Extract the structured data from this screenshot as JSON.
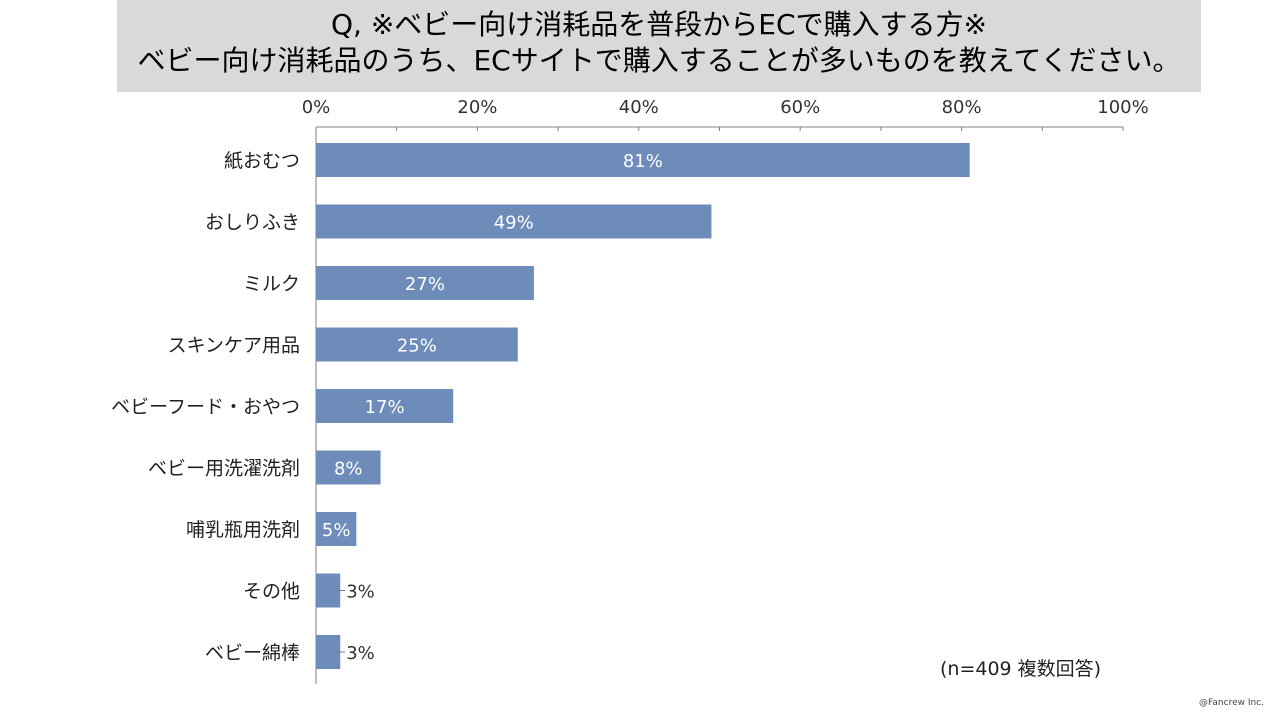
{
  "header": {
    "title_line_1": "Q, ※ベビー向け消耗品を普段からECで購入する方※",
    "title_line_2": "ベビー向け消耗品のうち、ECサイトで購入することが多いものを教えてください。"
  },
  "chart_data": {
    "type": "bar",
    "orientation": "horizontal",
    "categories": [
      "紙おむつ",
      "おしりふき",
      "ミルク",
      "スキンケア用品",
      "ベビーフード・おやつ",
      "ベビー用洗濯洗剤",
      "哺乳瓶用洗剤",
      "その他",
      "ベビー綿棒"
    ],
    "values": [
      81,
      49,
      27,
      25,
      17,
      8,
      5,
      3,
      3
    ],
    "value_labels": [
      "81%",
      "49%",
      "27%",
      "25%",
      "17%",
      "8%",
      "5%",
      "3%",
      "3%"
    ],
    "value_unit": "%",
    "xlim": [
      0,
      100
    ],
    "x_ticks": [
      0,
      20,
      40,
      60,
      80,
      100
    ],
    "x_tick_labels": [
      "0%",
      "20%",
      "40%",
      "60%",
      "80%",
      "100%"
    ],
    "x_axis_position": "top",
    "grid": false,
    "legend": "none",
    "bar_color": "#6d8cb9"
  },
  "footer": {
    "sample_note": "(n=409 複数回答)",
    "copyright": "@Fancrew Inc."
  }
}
